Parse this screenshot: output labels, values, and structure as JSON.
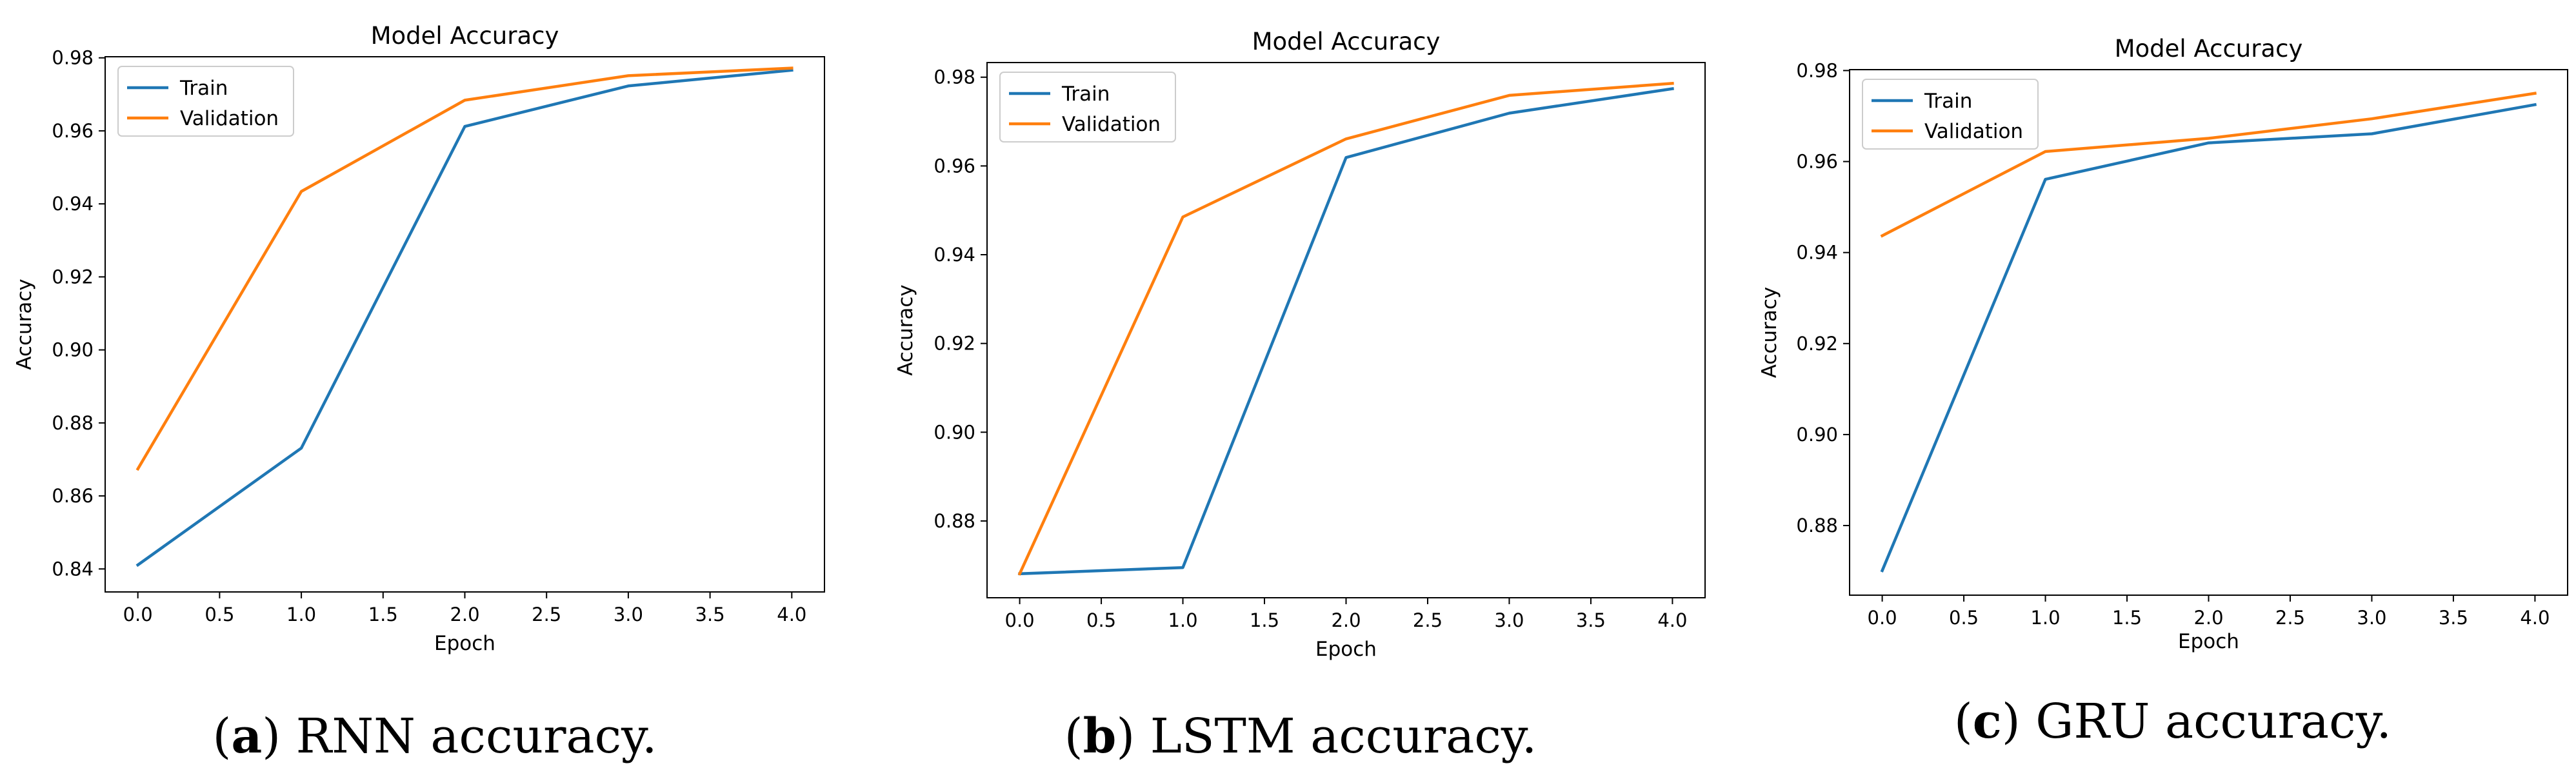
{
  "chart_data": [
    {
      "type": "line",
      "title": "Model Accuracy",
      "xlabel": "Epoch",
      "ylabel": "Accuracy",
      "x": [
        0,
        1,
        2,
        3,
        4
      ],
      "xlim": [
        -0.2,
        4.2
      ],
      "ylim": [
        0.8337,
        0.9803
      ],
      "xticks": [
        0.0,
        0.5,
        1.0,
        1.5,
        2.0,
        2.5,
        3.0,
        3.5,
        4.0
      ],
      "xtick_labels": [
        "0.0",
        "0.5",
        "1.0",
        "1.5",
        "2.0",
        "2.5",
        "3.0",
        "3.5",
        "4.0"
      ],
      "yticks": [
        0.84,
        0.86,
        0.88,
        0.9,
        0.92,
        0.94,
        0.96,
        0.98
      ],
      "ytick_labels": [
        "0.84",
        "0.86",
        "0.88",
        "0.90",
        "0.92",
        "0.94",
        "0.96",
        "0.98"
      ],
      "legend_position": "top-left",
      "series": [
        {
          "name": "Train",
          "color": "#1f77b4",
          "values": [
            0.8411,
            0.8731,
            0.9612,
            0.9723,
            0.9766
          ]
        },
        {
          "name": "Validation",
          "color": "#ff7f0e",
          "values": [
            0.8674,
            0.9434,
            0.9684,
            0.9751,
            0.9772
          ]
        }
      ],
      "caption_letter": "a",
      "caption_text": " RNN accuracy."
    },
    {
      "type": "line",
      "title": "Model Accuracy",
      "xlabel": "Epoch",
      "ylabel": "Accuracy",
      "x": [
        0,
        1,
        2,
        3,
        4
      ],
      "xlim": [
        -0.2,
        4.2
      ],
      "ylim": [
        0.8627,
        0.9833
      ],
      "xticks": [
        0.0,
        0.5,
        1.0,
        1.5,
        2.0,
        2.5,
        3.0,
        3.5,
        4.0
      ],
      "xtick_labels": [
        "0.0",
        "0.5",
        "1.0",
        "1.5",
        "2.0",
        "2.5",
        "3.0",
        "3.5",
        "4.0"
      ],
      "yticks": [
        0.88,
        0.9,
        0.92,
        0.94,
        0.96,
        0.98
      ],
      "ytick_labels": [
        "0.88",
        "0.90",
        "0.92",
        "0.94",
        "0.96",
        "0.98"
      ],
      "legend_position": "top-left",
      "series": [
        {
          "name": "Train",
          "color": "#1f77b4",
          "values": [
            0.8681,
            0.8695,
            0.9619,
            0.9719,
            0.9774
          ]
        },
        {
          "name": "Validation",
          "color": "#ff7f0e",
          "values": [
            0.8681,
            0.9485,
            0.9661,
            0.9759,
            0.9786
          ]
        }
      ],
      "caption_letter": "b",
      "caption_text": " LSTM accuracy."
    },
    {
      "type": "line",
      "title": "Model Accuracy",
      "xlabel": "Epoch",
      "ylabel": "Accuracy",
      "x": [
        0,
        1,
        2,
        3,
        4
      ],
      "xlim": [
        -0.2,
        4.2
      ],
      "ylim": [
        0.8647,
        0.9802
      ],
      "xticks": [
        0.0,
        0.5,
        1.0,
        1.5,
        2.0,
        2.5,
        3.0,
        3.5,
        4.0
      ],
      "xtick_labels": [
        "0.0",
        "0.5",
        "1.0",
        "1.5",
        "2.0",
        "2.5",
        "3.0",
        "3.5",
        "4.0"
      ],
      "yticks": [
        0.88,
        0.9,
        0.92,
        0.94,
        0.96,
        0.98
      ],
      "ytick_labels": [
        "0.88",
        "0.90",
        "0.92",
        "0.94",
        "0.96",
        "0.98"
      ],
      "legend_position": "top-left",
      "series": [
        {
          "name": "Train",
          "color": "#1f77b4",
          "values": [
            0.8701,
            0.9561,
            0.9641,
            0.9661,
            0.9725
          ]
        },
        {
          "name": "Validation",
          "color": "#ff7f0e",
          "values": [
            0.9437,
            0.9622,
            0.9651,
            0.9694,
            0.975
          ]
        }
      ],
      "caption_letter": "c",
      "caption_text": " GRU accuracy."
    }
  ]
}
